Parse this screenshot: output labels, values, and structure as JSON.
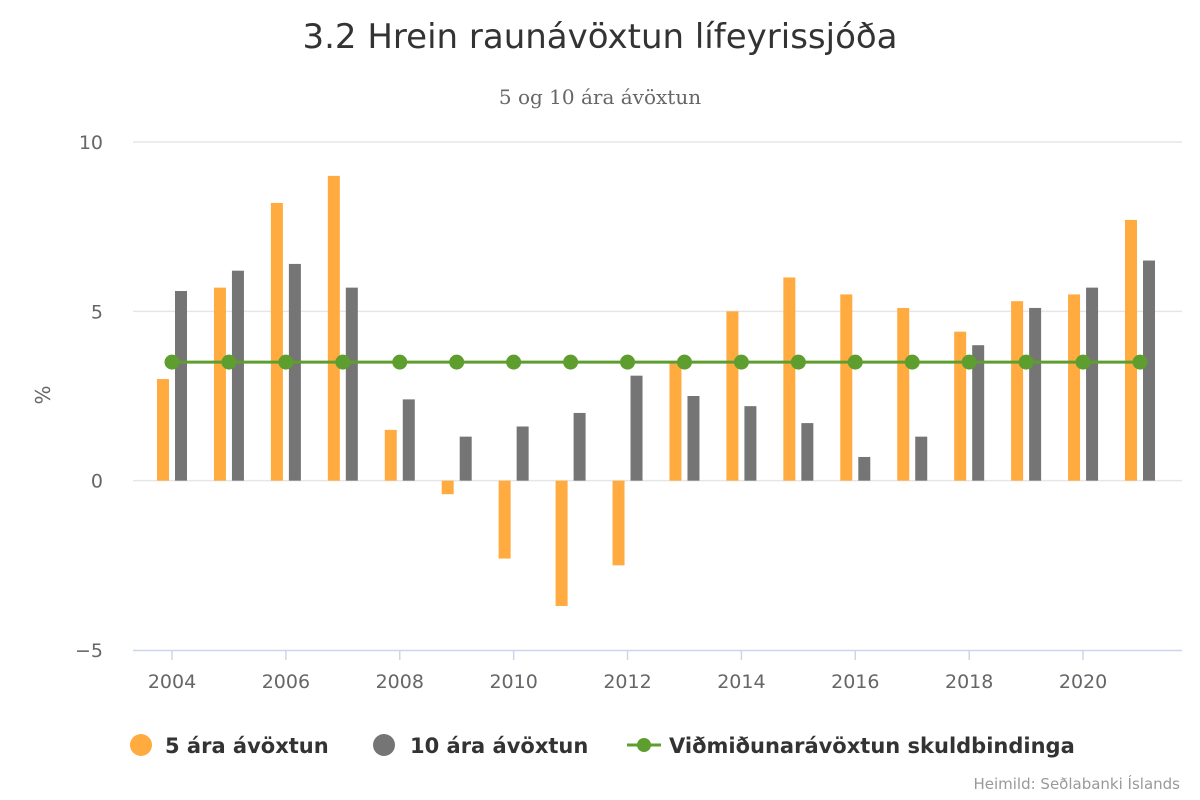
{
  "chart_data": {
    "type": "bar",
    "title": "3.2 Hrein raunávöxtun lífeyrissjóða",
    "subtitle": "5 og 10 ára ávöxtun",
    "ylabel": "%",
    "xlabel": "",
    "x": [
      2004,
      2005,
      2006,
      2007,
      2008,
      2009,
      2010,
      2011,
      2012,
      2013,
      2014,
      2015,
      2016,
      2017,
      2018,
      2019,
      2020,
      2021
    ],
    "x_ticks": [
      "2004",
      "2006",
      "2008",
      "2010",
      "2012",
      "2014",
      "2016",
      "2018",
      "2020"
    ],
    "ylim": [
      -5,
      10
    ],
    "y_ticks": [
      "10",
      "5",
      "0",
      "−5"
    ],
    "grid": true,
    "legend_position": "bottom-left",
    "series": [
      {
        "name": "5 ára ávöxtun",
        "type": "bar",
        "color": "#FFAB40",
        "values": [
          3.0,
          5.7,
          8.2,
          9.0,
          1.5,
          -0.4,
          -2.3,
          -3.7,
          -2.5,
          3.5,
          5.0,
          6.0,
          5.5,
          5.1,
          4.4,
          5.3,
          5.5,
          7.7
        ]
      },
      {
        "name": "10 ára ávöxtun",
        "type": "bar",
        "color": "#757575",
        "values": [
          5.6,
          6.2,
          6.4,
          5.7,
          2.4,
          1.3,
          1.6,
          2.0,
          3.1,
          2.5,
          2.2,
          1.7,
          0.7,
          1.3,
          4.0,
          5.1,
          5.7,
          6.5
        ]
      },
      {
        "name": "Viðmiðunarávöxtun skuldbindinga",
        "type": "line",
        "color": "#5E9E2E",
        "values": [
          3.5,
          3.5,
          3.5,
          3.5,
          3.5,
          3.5,
          3.5,
          3.5,
          3.5,
          3.5,
          3.5,
          3.5,
          3.5,
          3.5,
          3.5,
          3.5,
          3.5,
          3.5
        ]
      }
    ],
    "source": "Heimild: Seðlabanki Íslands"
  },
  "colors": {
    "grid": "#e6e6e6",
    "axis": "#ccd6eb",
    "background": "#ffffff"
  }
}
